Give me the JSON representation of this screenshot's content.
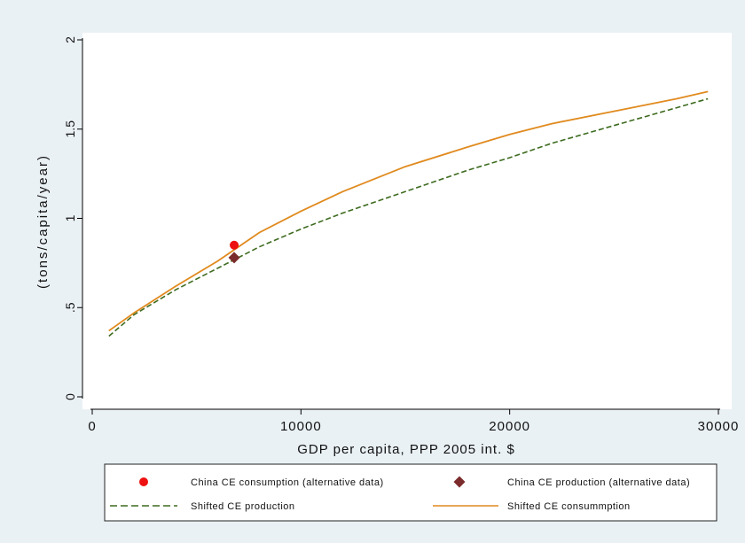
{
  "chart_data": {
    "type": "line",
    "title": "",
    "xlabel": "GDP per capita, PPP 2005 int. $",
    "ylabel": "(tons/capita/year)",
    "xlim": [
      0,
      30000
    ],
    "ylim": [
      0,
      2
    ],
    "x_ticks": [
      0,
      10000,
      20000,
      30000
    ],
    "x_tick_labels": [
      "0",
      "10000",
      "20000",
      "30000"
    ],
    "y_ticks": [
      0,
      0.5,
      1,
      1.5,
      2
    ],
    "y_tick_labels": [
      "0",
      ".5",
      "1",
      "1.5",
      "2"
    ],
    "grid": false,
    "legend_position": "bottom",
    "series": [
      {
        "name": "Shifted CE consummption",
        "kind": "line",
        "color": "#e08a1e",
        "dash": "solid",
        "x": [
          800,
          2000,
          4000,
          6000,
          8000,
          10000,
          12000,
          15000,
          18000,
          20000,
          22000,
          25000,
          28000,
          29500
        ],
        "y": [
          0.37,
          0.47,
          0.62,
          0.76,
          0.92,
          1.04,
          1.15,
          1.29,
          1.4,
          1.47,
          1.53,
          1.6,
          1.67,
          1.71
        ]
      },
      {
        "name": "Shifted CE production",
        "kind": "line",
        "color": "#3d6b1f",
        "dash": "dashed",
        "x": [
          800,
          2000,
          4000,
          6000,
          8000,
          10000,
          12000,
          15000,
          18000,
          20000,
          22000,
          25000,
          28000,
          29500
        ],
        "y": [
          0.34,
          0.46,
          0.6,
          0.72,
          0.84,
          0.94,
          1.03,
          1.15,
          1.27,
          1.34,
          1.42,
          1.52,
          1.62,
          1.67
        ]
      },
      {
        "name": "China CE consumption (alternative data)",
        "kind": "point",
        "marker": "circle",
        "color": "#ee1111",
        "x": [
          6800
        ],
        "y": [
          0.85
        ]
      },
      {
        "name": "China CE production (alternative data)",
        "kind": "point",
        "marker": "diamond",
        "color": "#7b2b2b",
        "x": [
          6800
        ],
        "y": [
          0.78
        ]
      }
    ]
  }
}
